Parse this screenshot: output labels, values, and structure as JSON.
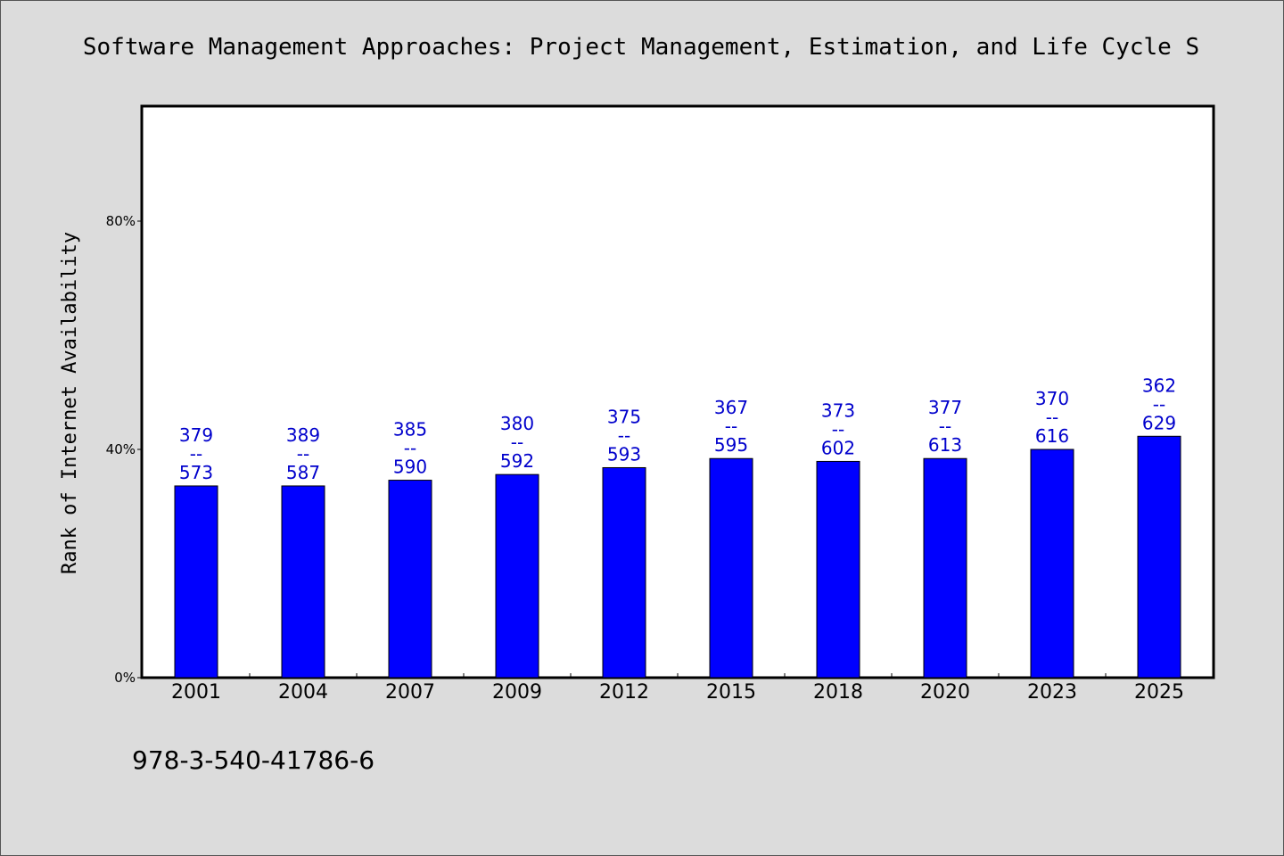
{
  "chart_data": {
    "type": "bar",
    "title": "Software Management Approaches: Project Management, Estimation, and Life Cycle S",
    "ylabel": "Rank of Internet Availability",
    "xlabel": "",
    "categories": [
      "2001",
      "2004",
      "2007",
      "2009",
      "2012",
      "2015",
      "2018",
      "2020",
      "2023",
      "2025"
    ],
    "values": [
      33.6,
      33.6,
      34.6,
      35.6,
      36.8,
      38.4,
      37.9,
      38.4,
      40.0,
      42.3
    ],
    "data_labels": [
      [
        "379",
        "--",
        "573"
      ],
      [
        "389",
        "--",
        "587"
      ],
      [
        "385",
        "--",
        "590"
      ],
      [
        "380",
        "--",
        "592"
      ],
      [
        "375",
        "--",
        "593"
      ],
      [
        "367",
        "--",
        "595"
      ],
      [
        "373",
        "--",
        "602"
      ],
      [
        "377",
        "--",
        "613"
      ],
      [
        "370",
        "--",
        "616"
      ],
      [
        "362",
        "--",
        "629"
      ]
    ],
    "ylim": [
      0,
      100
    ],
    "yticks": [
      {
        "value": 0,
        "label": "0%"
      },
      {
        "value": 40,
        "label": "40%"
      },
      {
        "value": 80,
        "label": "80%"
      }
    ],
    "grid": false,
    "legend": "none",
    "bar_color": "#0000ff",
    "label_color": "#0000cc"
  },
  "footer": {
    "isbn": "978-3-540-41786-6"
  }
}
